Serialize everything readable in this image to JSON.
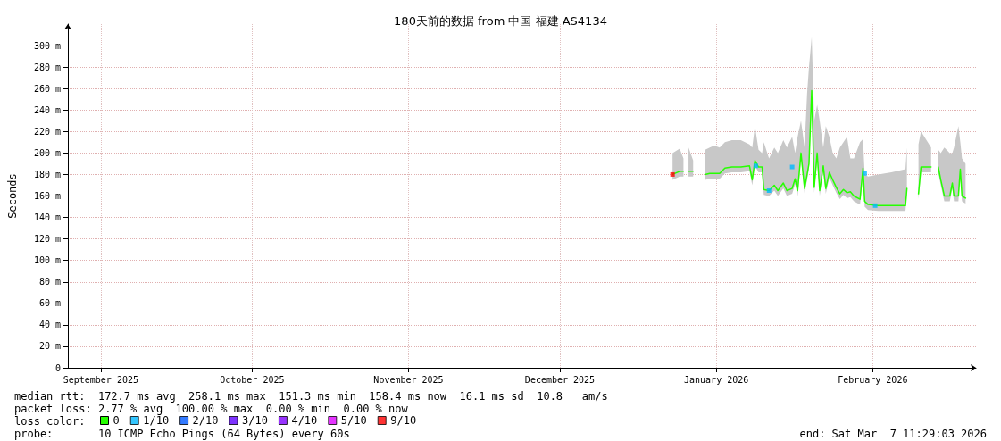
{
  "chart_data": {
    "type": "line",
    "title": "180天前的数据 from 中国 福建 AS4134",
    "ylabel": "Seconds",
    "legend_title": "loss color:",
    "legend": "bottom",
    "grid": true,
    "marker": "none",
    "xlim": [
      "2025-09-08T11:29",
      "2026-03-07T11:29"
    ],
    "xticks": [
      {
        "value": "2025-09-15",
        "label": "September 2025"
      },
      {
        "value": "2025-10-15",
        "label": "October 2025"
      },
      {
        "value": "2025-11-15",
        "label": "November 2025"
      },
      {
        "value": "2025-12-15",
        "label": "December 2025"
      },
      {
        "value": "2026-01-15",
        "label": "January 2026"
      },
      {
        "value": "2026-02-15",
        "label": "February 2026"
      }
    ],
    "ylim": [
      0,
      320
    ],
    "yticks": [
      0,
      {
        "value": 20,
        "label": "20 m"
      },
      {
        "value": 40,
        "label": "40 m"
      },
      {
        "value": 60,
        "label": "60 m"
      },
      {
        "value": 80,
        "label": "80 m"
      },
      {
        "value": 100,
        "label": "100 m"
      },
      {
        "value": 120,
        "label": "120 m"
      },
      {
        "value": 140,
        "label": "140 m"
      },
      {
        "value": 160,
        "label": "160 m"
      },
      {
        "value": 180,
        "label": "180 m"
      },
      {
        "value": 200,
        "label": "200 m"
      },
      {
        "value": 220,
        "label": "220 m"
      },
      {
        "value": 240,
        "label": "240 m"
      },
      {
        "value": 260,
        "label": "260 m"
      },
      {
        "value": 280,
        "label": "280 m"
      },
      {
        "value": 300,
        "label": "300 m"
      }
    ],
    "series": [
      {
        "name": "0",
        "color": "#26ff00",
        "x": [
          "2026-01-06T08:00",
          "2026-01-07T18:00",
          "2026-01-08T12:00",
          "2026-01-09T00:00",
          "2026-01-09T12:00",
          "2026-01-10T10:00",
          "2026-01-11T12:00",
          "2026-01-12T19:00",
          "2026-01-13T17:00",
          "2026-01-14T14:00",
          "2026-01-15T16:00",
          "2026-01-16T17:00",
          "2026-01-18T02:00",
          "2026-01-19T21:00",
          "2026-01-21T14:00",
          "2026-01-22T03:00",
          "2026-01-22T16:00",
          "2026-01-23T09:00",
          "2026-01-24T02:00",
          "2026-01-24T10:00",
          "2026-01-25T11:00",
          "2026-01-26T12:00",
          "2026-01-27T05:00",
          "2026-01-28T07:00",
          "2026-01-29T00:00",
          "2026-01-30T01:00",
          "2026-01-30T15:00",
          "2026-01-31T03:00",
          "2026-01-31T19:00",
          "2026-02-01T12:00",
          "2026-02-02T00:00",
          "2026-02-02T09:00",
          "2026-02-02T22:00",
          "2026-02-03T10:00",
          "2026-02-04T00:00",
          "2026-02-04T12:00",
          "2026-02-05T05:00",
          "2026-02-05T17:00",
          "2026-02-06T10:00",
          "2026-02-07T02:00",
          "2026-02-07T19:00",
          "2026-02-08T12:00",
          "2026-02-09T05:00",
          "2026-02-09T22:00",
          "2026-02-10T14:00",
          "2026-02-11T07:00",
          "2026-02-12T12:00",
          "2026-02-13T02:00",
          "2026-02-13T10:00",
          "2026-02-14T02:00",
          "2026-02-16T02:00",
          "2026-02-18T17:00",
          "2026-02-21T12:00",
          "2026-02-21T19:00",
          "2026-02-23T00:00",
          "2026-02-24T02:00",
          "2026-02-24T14:00",
          "2026-02-26T14:00",
          "2026-02-27T08:00",
          "2026-02-28T00:00",
          "2026-02-28T12:00",
          "2026-03-01T05:00",
          "2026-03-02T07:00",
          "2026-03-02T19:00",
          "2026-03-03T03:00",
          "2026-03-04T00:00",
          "2026-03-04T09:00",
          "2026-03-04T17:00",
          "2026-03-05T10:00"
        ],
        "values": [
          180,
          183,
          183,
          null,
          183,
          183,
          null,
          180,
          181,
          181,
          181,
          186,
          187,
          187,
          188,
          175,
          193,
          187,
          187,
          166,
          165,
          170,
          165,
          172,
          165,
          167,
          176,
          165,
          200,
          167,
          180,
          190,
          258,
          168,
          200,
          165,
          188,
          167,
          182,
          175,
          168,
          162,
          166,
          163,
          164,
          160,
          157,
          186,
          155,
          152,
          151,
          151,
          151,
          167,
          null,
          162,
          187,
          187,
          null,
          187,
          175,
          160,
          160,
          172,
          160,
          160,
          185,
          160,
          158
        ],
        "lower": [
          175,
          178,
          178,
          null,
          178,
          178,
          null,
          175,
          176,
          176,
          176,
          181,
          182,
          182,
          183,
          170,
          188,
          182,
          182,
          161,
          160,
          165,
          160,
          167,
          160,
          162,
          171,
          160,
          195,
          162,
          175,
          185,
          253,
          163,
          195,
          160,
          183,
          162,
          177,
          170,
          163,
          157,
          161,
          158,
          159,
          155,
          152,
          181,
          150,
          147,
          146,
          146,
          146,
          162,
          null,
          157,
          182,
          182,
          null,
          182,
          170,
          155,
          155,
          167,
          155,
          155,
          180,
          155,
          153
        ],
        "upper": [
          200,
          204,
          195,
          null,
          205,
          193,
          null,
          203,
          205,
          207,
          205,
          210,
          212,
          212,
          208,
          205,
          225,
          203,
          200,
          210,
          195,
          205,
          200,
          212,
          205,
          215,
          200,
          215,
          230,
          205,
          255,
          280,
          308,
          230,
          245,
          230,
          205,
          225,
          215,
          200,
          195,
          205,
          210,
          215,
          195,
          195,
          210,
          213,
          180,
          178,
          180,
          182,
          185,
          205,
          null,
          208,
          220,
          205,
          null,
          203,
          200,
          205,
          200,
          200,
          205,
          225,
          210,
          195,
          190
        ]
      },
      {
        "name": "1/10",
        "type": "scatter",
        "marker": "square",
        "color": "#00b8ff",
        "x": [
          "2026-01-22T20:00",
          "2026-01-25T11:00",
          "2026-01-30T01:00",
          "2026-02-13T10:00",
          "2026-02-15T12:00"
        ],
        "values": [
          188,
          165,
          187,
          181,
          151
        ]
      },
      {
        "name": "2/10",
        "type": "scatter",
        "marker": "square",
        "color": "#0059ff"
      },
      {
        "name": "3/10",
        "type": "scatter",
        "marker": "square",
        "color": "#5e00ff"
      },
      {
        "name": "4/10",
        "type": "scatter",
        "marker": "square",
        "color": "#7e00ff"
      },
      {
        "name": "5/10",
        "type": "scatter",
        "marker": "square",
        "color": "#dd00ff"
      },
      {
        "name": "9/10",
        "type": "scatter",
        "marker": "square",
        "color": "#ff0000",
        "x": [
          "2026-01-06T08:00"
        ],
        "values": [
          180
        ]
      }
    ],
    "annotations": [
      "median rtt:  172.7 ms avg  258.1 ms max  151.3 ms min  158.4 ms now  16.1 ms sd  10.8   am/s",
      "packet loss: 2.77 % avg  100.00 % max  0.00 % min  0.00 % now",
      "probe:       10 ICMP Echo Pings (64 Bytes) every 60s",
      "end: Sat Mar  7 11:29:03 2026"
    ]
  }
}
